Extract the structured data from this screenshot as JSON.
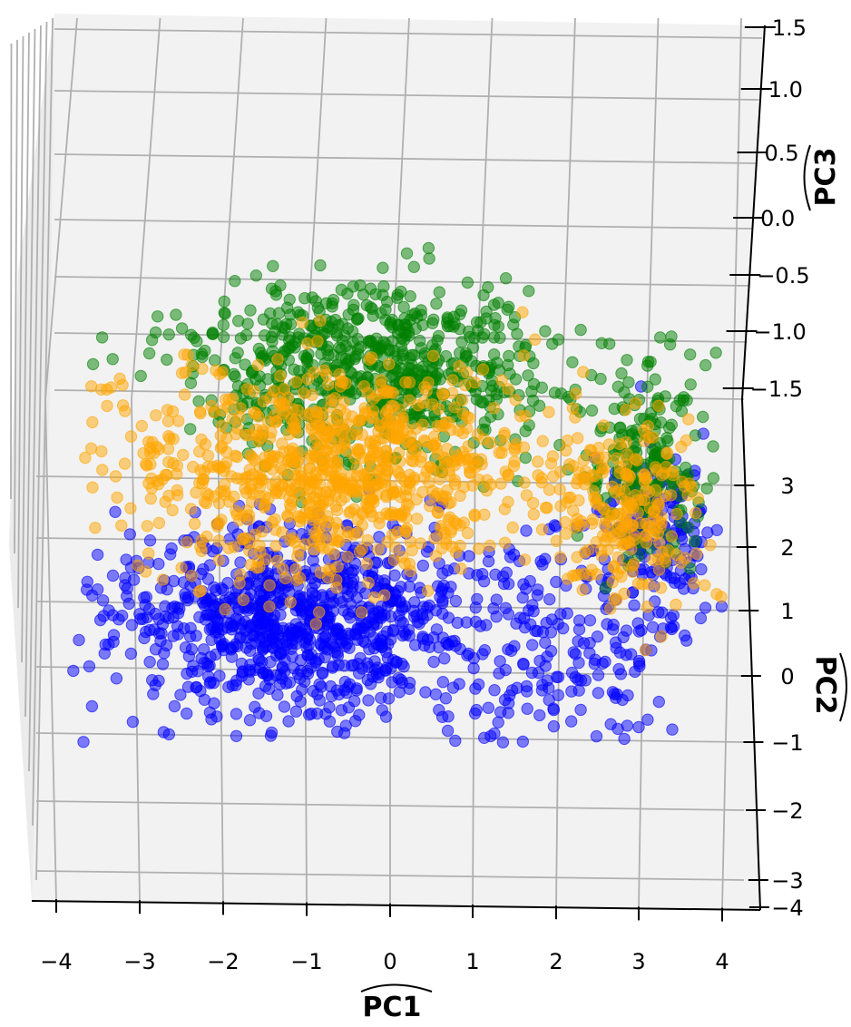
{
  "chart_data": {
    "type": "scatter",
    "projection": "3d",
    "title": "",
    "xlabel": "PC1",
    "ylabel": "PC2",
    "zlabel": "PC3",
    "xticks": [
      "−4",
      "−3",
      "−2",
      "−1",
      "0",
      "1",
      "2",
      "3",
      "4"
    ],
    "yticks": [
      "3",
      "2",
      "1",
      "0",
      "−1",
      "−2",
      "−3",
      "−4"
    ],
    "zticks": [
      "1.5",
      "1.0",
      "0.5",
      "0.0",
      "−0.5",
      "−1.0",
      "−1.5"
    ],
    "xlim": [
      -4.3,
      4.5
    ],
    "ylim": [
      -4,
      3.6
    ],
    "zlim": [
      -1.8,
      1.6
    ],
    "grid": true,
    "series": [
      {
        "color": "#0000ff",
        "clusters": [
          {
            "x": -1.2,
            "y": 0.8,
            "sx": 1.1,
            "sy": 1.0,
            "z": 0.0,
            "count": 900
          },
          {
            "x": 1.9,
            "y": 0.3,
            "sx": 0.8,
            "sy": 1.3,
            "z": 0.0,
            "count": 220
          },
          {
            "x": 3.2,
            "y": 2.0,
            "sx": 0.35,
            "sy": 1.0,
            "z": 0.2,
            "count": 160
          }
        ]
      },
      {
        "color": "#008000",
        "clusters": [
          {
            "x": -0.2,
            "y": 3.6,
            "sx": 1.1,
            "sy": 0.9,
            "z": 0.8,
            "count": 700
          },
          {
            "x": 3.1,
            "y": 2.6,
            "sx": 0.35,
            "sy": 1.0,
            "z": 0.5,
            "count": 200
          }
        ]
      },
      {
        "color": "#ffa500",
        "clusters": [
          {
            "x": -0.7,
            "y": 2.5,
            "sx": 1.2,
            "sy": 1.2,
            "z": 0.5,
            "count": 900
          },
          {
            "x": 2.8,
            "y": 2.2,
            "sx": 0.5,
            "sy": 1.0,
            "z": 0.2,
            "count": 230
          }
        ]
      }
    ]
  }
}
